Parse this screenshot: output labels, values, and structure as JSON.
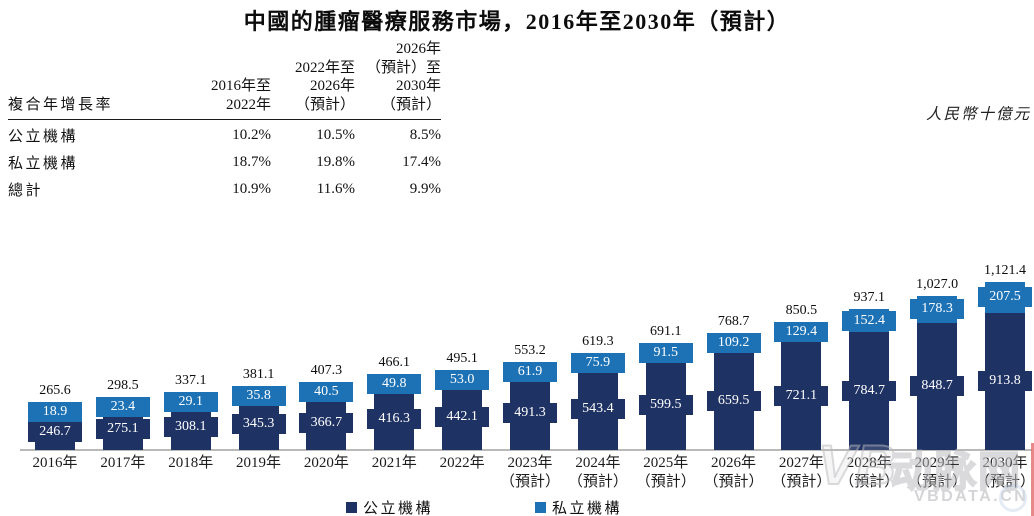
{
  "title": "中國的腫瘤醫療服務市場，2016年至2030年（預計）",
  "unit_label": "人民幣十億元",
  "cagr_table": {
    "row_header": "複合年增長率",
    "col_headers": [
      [
        "2016年至",
        "2022年"
      ],
      [
        "2022年至",
        "2026年",
        "（預計）"
      ],
      [
        "2026年",
        "（預計）至",
        "2030年",
        "（預計）"
      ]
    ],
    "rows": [
      {
        "label": "公立機構",
        "values": [
          "10.2%",
          "10.5%",
          "8.5%"
        ]
      },
      {
        "label": "私立機構",
        "values": [
          "18.7%",
          "19.8%",
          "17.4%"
        ]
      },
      {
        "label": "總計",
        "values": [
          "10.9%",
          "11.6%",
          "9.9%"
        ]
      }
    ]
  },
  "chart_data": {
    "type": "bar",
    "stacked": true,
    "unit": "人民幣十億元",
    "categories": [
      "2016年",
      "2017年",
      "2018年",
      "2019年",
      "2020年",
      "2021年",
      "2022年",
      "2023年",
      "2024年",
      "2025年",
      "2026年",
      "2027年",
      "2028年",
      "2029年",
      "2030年"
    ],
    "category_sublabels": [
      "",
      "",
      "",
      "",
      "",
      "",
      "",
      "（預計）",
      "（預計）",
      "（預計）",
      "（預計）",
      "（預計）",
      "（預計）",
      "（預計）",
      "（預計）"
    ],
    "series": [
      {
        "name": "公立機構",
        "color": "#1f3264",
        "values": [
          246.7,
          275.1,
          308.1,
          345.3,
          366.7,
          416.3,
          442.1,
          491.3,
          543.4,
          599.5,
          659.5,
          721.1,
          784.7,
          848.7,
          913.8
        ],
        "labels": [
          "246.7",
          "275.1",
          "308.1",
          "345.3",
          "366.7",
          "416.3",
          "442.1",
          "491.3",
          "543.4",
          "599.5",
          "659.5",
          "721.1",
          "784.7",
          "848.7",
          "913.8"
        ]
      },
      {
        "name": "私立機構",
        "color": "#1d72b6",
        "values": [
          18.9,
          23.4,
          29.1,
          35.8,
          40.5,
          49.8,
          53.0,
          61.9,
          75.9,
          91.5,
          109.2,
          129.4,
          152.4,
          178.3,
          207.5
        ],
        "labels": [
          "18.9",
          "23.4",
          "29.1",
          "35.8",
          "40.5",
          "49.8",
          "53.0",
          "61.9",
          "75.9",
          "91.5",
          "109.2",
          "129.4",
          "152.4",
          "178.3",
          "207.5"
        ]
      }
    ],
    "totals": [
      265.6,
      298.5,
      337.1,
      381.1,
      407.3,
      466.1,
      495.1,
      553.2,
      619.3,
      691.1,
      768.7,
      850.5,
      937.1,
      1027.0,
      1121.4
    ],
    "total_labels": [
      "265.6",
      "298.5",
      "337.1",
      "381.1",
      "407.3",
      "466.1",
      "495.1",
      "553.2",
      "619.3",
      "691.1",
      "768.7",
      "850.5",
      "937.1",
      "1,027.0",
      "1,121.4"
    ],
    "ylim": [
      0,
      1200
    ],
    "grid": false,
    "legend_position": "bottom"
  },
  "colors": {
    "public": "#1f3264",
    "private": "#1d72b6",
    "axis_line": "#b9b9b9"
  },
  "watermark": {
    "logo_mark": "VB",
    "logo_text": "动脉网",
    "site": "VBDATA.CN"
  }
}
